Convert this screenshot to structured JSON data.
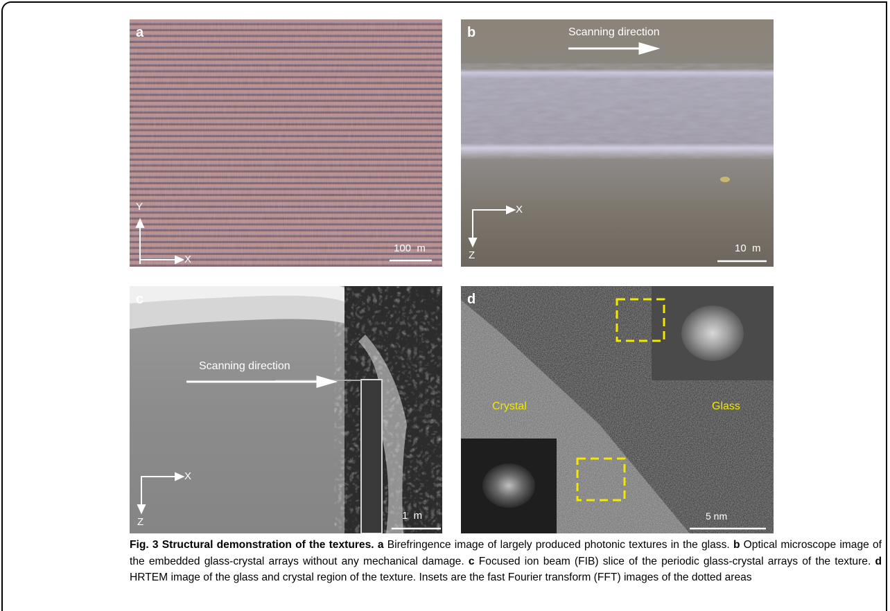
{
  "figure": {
    "panels": [
      {
        "label": "a",
        "axis_y": "Y",
        "axis_x": "X",
        "scale_bar": "100  m"
      },
      {
        "label": "b",
        "arrow_text": "Scanning direction",
        "axis_x": "X",
        "axis_z": "Z",
        "scale_bar": "10  m"
      },
      {
        "label": "c",
        "arrow_text": "Scanning direction",
        "axis_x": "X",
        "axis_z": "Z",
        "scale_bar": "1  m"
      },
      {
        "label": "d",
        "crystal": "Crystal",
        "glass": "Glass",
        "scale_bar": "5 nm"
      }
    ],
    "caption": {
      "title": "Fig. 3 Structural demonstration of the textures.",
      "items": [
        {
          "label": "a",
          "text": "Birefringence image of largely produced photonic textures in the glass."
        },
        {
          "label": "b",
          "text": "Optical microscope image of the embedded glass-crystal arrays without any mechanical damage."
        },
        {
          "label": "c",
          "text": "Focused ion beam (FIB) slice of the periodic glass-crystal arrays of the texture."
        },
        {
          "label": "d",
          "text": "HRTEM image of the glass and crystal region of the texture. Insets are the fast Fourier transform (FFT) images of the dotted areas"
        }
      ]
    }
  }
}
